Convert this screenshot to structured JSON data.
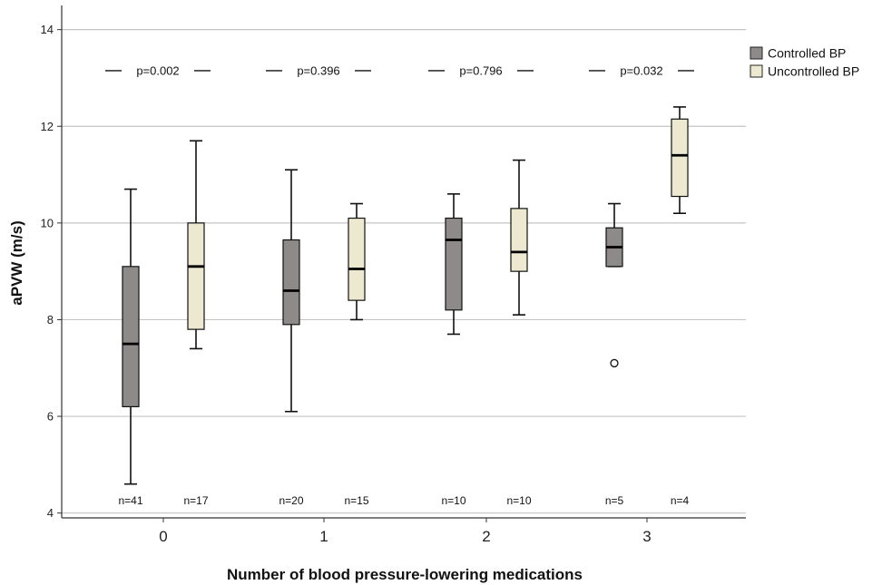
{
  "chart_data": {
    "type": "box",
    "xlabel": "Number of blood pressure-lowering medications",
    "ylabel": "aPVW (m/s)",
    "ylim": [
      3.9,
      14.5
    ],
    "yticks": [
      "4",
      "6",
      "8",
      "10",
      "12",
      "14"
    ],
    "grid": "horizontal",
    "legend_position": "top-right",
    "categories": [
      "0",
      "1",
      "2",
      "3"
    ],
    "series": [
      {
        "name": "Controlled BP",
        "color": "#8e8a8a",
        "boxes": [
          {
            "min": 4.6,
            "q1": 6.2,
            "median": 7.5,
            "q3": 9.1,
            "max": 10.7,
            "n": "n=41",
            "outliers": []
          },
          {
            "min": 6.1,
            "q1": 7.9,
            "median": 8.6,
            "q3": 9.65,
            "max": 11.1,
            "n": "n=20",
            "outliers": []
          },
          {
            "min": 7.7,
            "q1": 8.2,
            "median": 9.65,
            "q3": 10.1,
            "max": 10.6,
            "n": "n=10",
            "outliers": []
          },
          {
            "min": 9.1,
            "q1": 9.1,
            "median": 9.5,
            "q3": 9.9,
            "max": 10.4,
            "n": "n=5",
            "outliers": [
              7.1
            ]
          }
        ]
      },
      {
        "name": "Uncontrolled BP",
        "color": "#ede9d0",
        "boxes": [
          {
            "min": 7.4,
            "q1": 7.8,
            "median": 9.1,
            "q3": 10.0,
            "max": 11.7,
            "n": "n=17",
            "outliers": []
          },
          {
            "min": 8.0,
            "q1": 8.4,
            "median": 9.05,
            "q3": 10.1,
            "max": 10.4,
            "n": "n=15",
            "outliers": []
          },
          {
            "min": 8.1,
            "q1": 9.0,
            "median": 9.4,
            "q3": 10.3,
            "max": 11.3,
            "n": "n=10",
            "outliers": []
          },
          {
            "min": 10.2,
            "q1": 10.55,
            "median": 11.4,
            "q3": 12.15,
            "max": 12.4,
            "n": "n=4",
            "outliers": []
          }
        ]
      }
    ],
    "annotations": [
      {
        "category": "0",
        "text": "p=0.002",
        "y": 13.15
      },
      {
        "category": "1",
        "text": "p=0.396",
        "y": 13.15
      },
      {
        "category": "2",
        "text": "p=0.796",
        "y": 13.15
      },
      {
        "category": "3",
        "text": "p=0.032",
        "y": 13.15
      }
    ]
  }
}
